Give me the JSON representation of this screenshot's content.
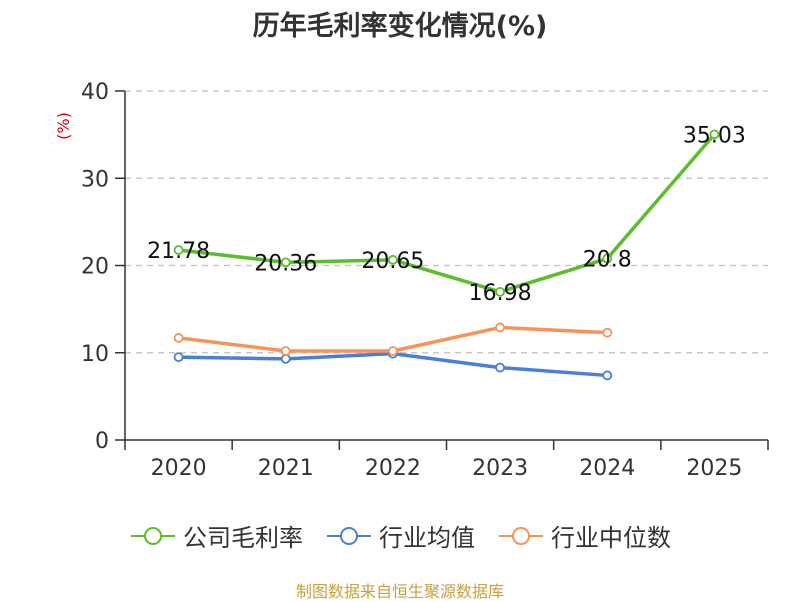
{
  "colors": {
    "company": "#5cbd2c",
    "industry_avg": "#4a7fd8",
    "industry_median": "#f5935b",
    "axis": "#333333",
    "grid": "#c8c8c8",
    "unit": "#d0021b",
    "source": "#c8a040"
  },
  "source_text": "制图数据来自恒生聚源数据库",
  "chart_data": {
    "type": "line",
    "title": "历年毛利率变化情况(%)",
    "ylabel": "(%)",
    "xlabel": "",
    "ylim": [
      0,
      40
    ],
    "yticks": [
      0,
      10,
      20,
      30,
      40
    ],
    "grid": true,
    "legend_position": "bottom",
    "categories": [
      "2020",
      "2021",
      "2022",
      "2023",
      "2024",
      "2025"
    ],
    "series": [
      {
        "name": "公司毛利率",
        "color_key": "company",
        "values": [
          21.78,
          20.36,
          20.65,
          16.98,
          20.8,
          35.03
        ],
        "labels": [
          "21.78",
          "20.36",
          "20.65",
          "16.98",
          "20.8",
          "35.03"
        ]
      },
      {
        "name": "行业均值",
        "color_key": "industry_avg",
        "values": [
          9.5,
          9.3,
          9.9,
          8.3,
          7.4,
          null
        ]
      },
      {
        "name": "行业中位数",
        "color_key": "industry_median",
        "values": [
          11.7,
          10.2,
          10.2,
          12.9,
          12.3,
          null
        ]
      }
    ]
  }
}
